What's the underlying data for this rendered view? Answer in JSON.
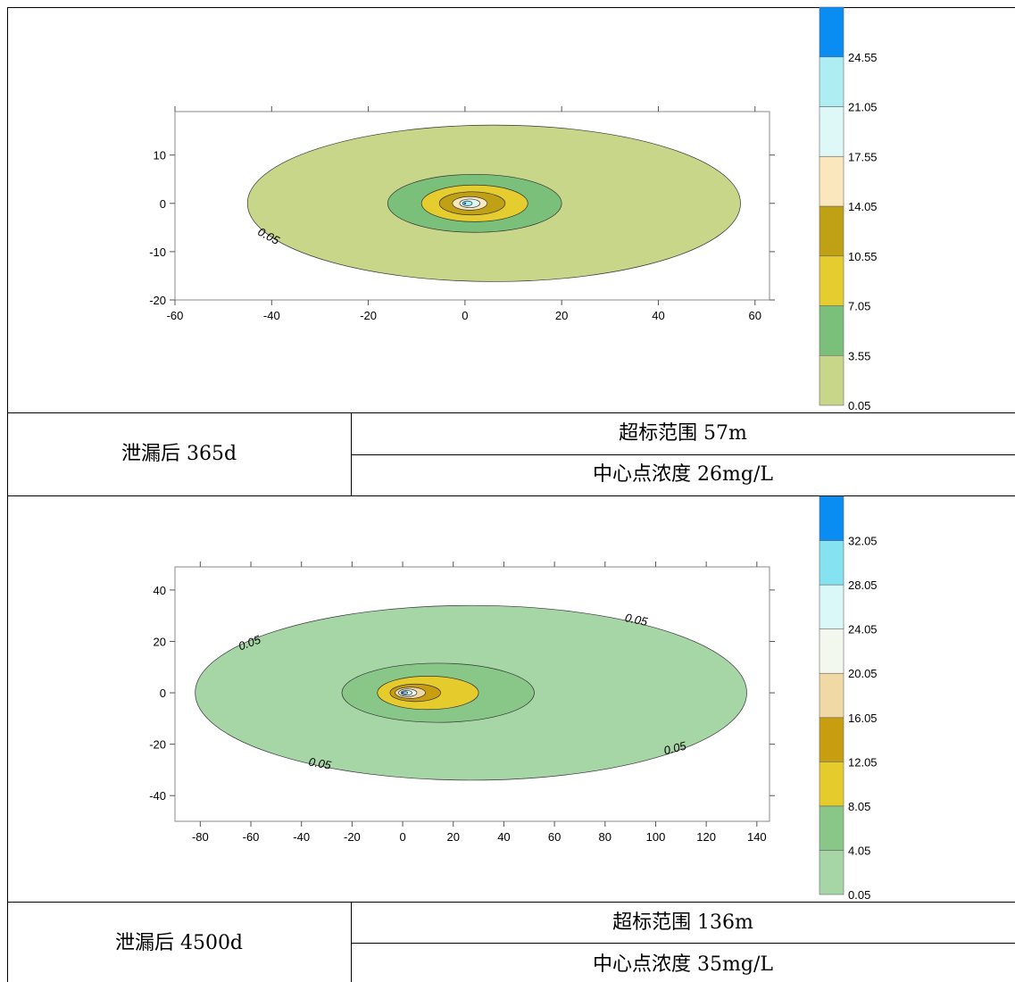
{
  "chart_data": [
    {
      "type": "heatmap",
      "subtype": "filled-contour",
      "xlim": [
        -60,
        63
      ],
      "ylim": [
        -20,
        19
      ],
      "x_ticks": [
        -60,
        -40,
        -20,
        0,
        20,
        40,
        60
      ],
      "y_ticks": [
        -20,
        -10,
        0,
        10
      ],
      "contour_levels": [
        0.05,
        3.55,
        7.05,
        10.55,
        14.05,
        17.55,
        21.05,
        24.55
      ],
      "level_colors": [
        "#c8d68a",
        "#7abf7a",
        "#e5cc2f",
        "#c0a014",
        "#fae7be",
        "#def8f8",
        "#aeedf2",
        "#0a8df2"
      ],
      "contour_labels": [
        {
          "text": "0.05",
          "x": -41,
          "y": -7.5
        }
      ],
      "regions": [
        {
          "level": 0.05,
          "cx": 6,
          "cy": 0,
          "rx": 51,
          "ry": 16.2
        },
        {
          "level": 3.55,
          "cx": 2,
          "cy": 0,
          "rx": 18,
          "ry": 6
        },
        {
          "level": 7.05,
          "cx": 2,
          "cy": 0,
          "rx": 11,
          "ry": 3.8
        },
        {
          "level": 10.55,
          "cx": 1.5,
          "cy": 0,
          "rx": 6.8,
          "ry": 2.4
        },
        {
          "level": 14.05,
          "cx": 1,
          "cy": 0,
          "rx": 3.6,
          "ry": 1.4
        },
        {
          "level": 17.55,
          "cx": 1,
          "cy": 0,
          "rx": 2.1,
          "ry": 0.9
        },
        {
          "level": 21.05,
          "cx": 0.5,
          "cy": 0,
          "rx": 1.0,
          "ry": 0.5
        }
      ],
      "center_mark": {
        "x": 0,
        "y": 0
      }
    },
    {
      "type": "heatmap",
      "subtype": "filled-contour",
      "xlim": [
        -90,
        145
      ],
      "ylim": [
        -50,
        49
      ],
      "x_ticks": [
        -80,
        -60,
        -40,
        -20,
        0,
        20,
        40,
        60,
        80,
        100,
        120,
        140
      ],
      "y_ticks": [
        -40,
        -20,
        0,
        20,
        40
      ],
      "contour_levels": [
        0.05,
        4.05,
        8.05,
        12.05,
        16.05,
        20.05,
        24.05,
        28.05,
        32.05
      ],
      "level_colors": [
        "#a6d6a6",
        "#88c788",
        "#e5cc2c",
        "#c89d0f",
        "#f0d9a4",
        "#f2f8ee",
        "#dbf8f8",
        "#84e2f1",
        "#0a8df2"
      ],
      "contour_labels": [
        {
          "text": "0.05",
          "x": -60,
          "y": 18,
          "rot": -20
        },
        {
          "text": "0.05",
          "x": 92,
          "y": 27,
          "rot": 12
        },
        {
          "text": "0.05",
          "x": -33,
          "y": -29,
          "rot": 10
        },
        {
          "text": "0.05",
          "x": 108,
          "y": -23,
          "rot": -14
        }
      ],
      "regions": [
        {
          "level": 0.05,
          "cx": 27,
          "cy": 0,
          "rx": 109,
          "ry": 34
        },
        {
          "level": 4.05,
          "cx": 14,
          "cy": 0,
          "rx": 38,
          "ry": 11.5
        },
        {
          "level": 8.05,
          "cx": 10,
          "cy": 0,
          "rx": 20,
          "ry": 6.5
        },
        {
          "level": 12.05,
          "cx": 5,
          "cy": 0,
          "rx": 10,
          "ry": 3.4
        },
        {
          "level": 16.05,
          "cx": 3,
          "cy": 0,
          "rx": 6,
          "ry": 2.2
        },
        {
          "level": 20.05,
          "cx": 2,
          "cy": 0,
          "rx": 3.6,
          "ry": 1.5
        },
        {
          "level": 24.05,
          "cx": 1.5,
          "cy": 0,
          "rx": 2.2,
          "ry": 0.9
        },
        {
          "level": 28.05,
          "cx": 1,
          "cy": 0,
          "rx": 1.0,
          "ry": 0.45
        }
      ],
      "center_mark": {
        "x": 0,
        "y": 0
      }
    }
  ],
  "table": {
    "rows": [
      {
        "time_label": "泄漏后 365d",
        "range_label": "超标范围 57m",
        "conc_label": "中心点浓度 26mg/L"
      },
      {
        "time_label": "泄漏后 4500d",
        "range_label": "超标范围 136m",
        "conc_label": "中心点浓度 35mg/L"
      }
    ]
  }
}
